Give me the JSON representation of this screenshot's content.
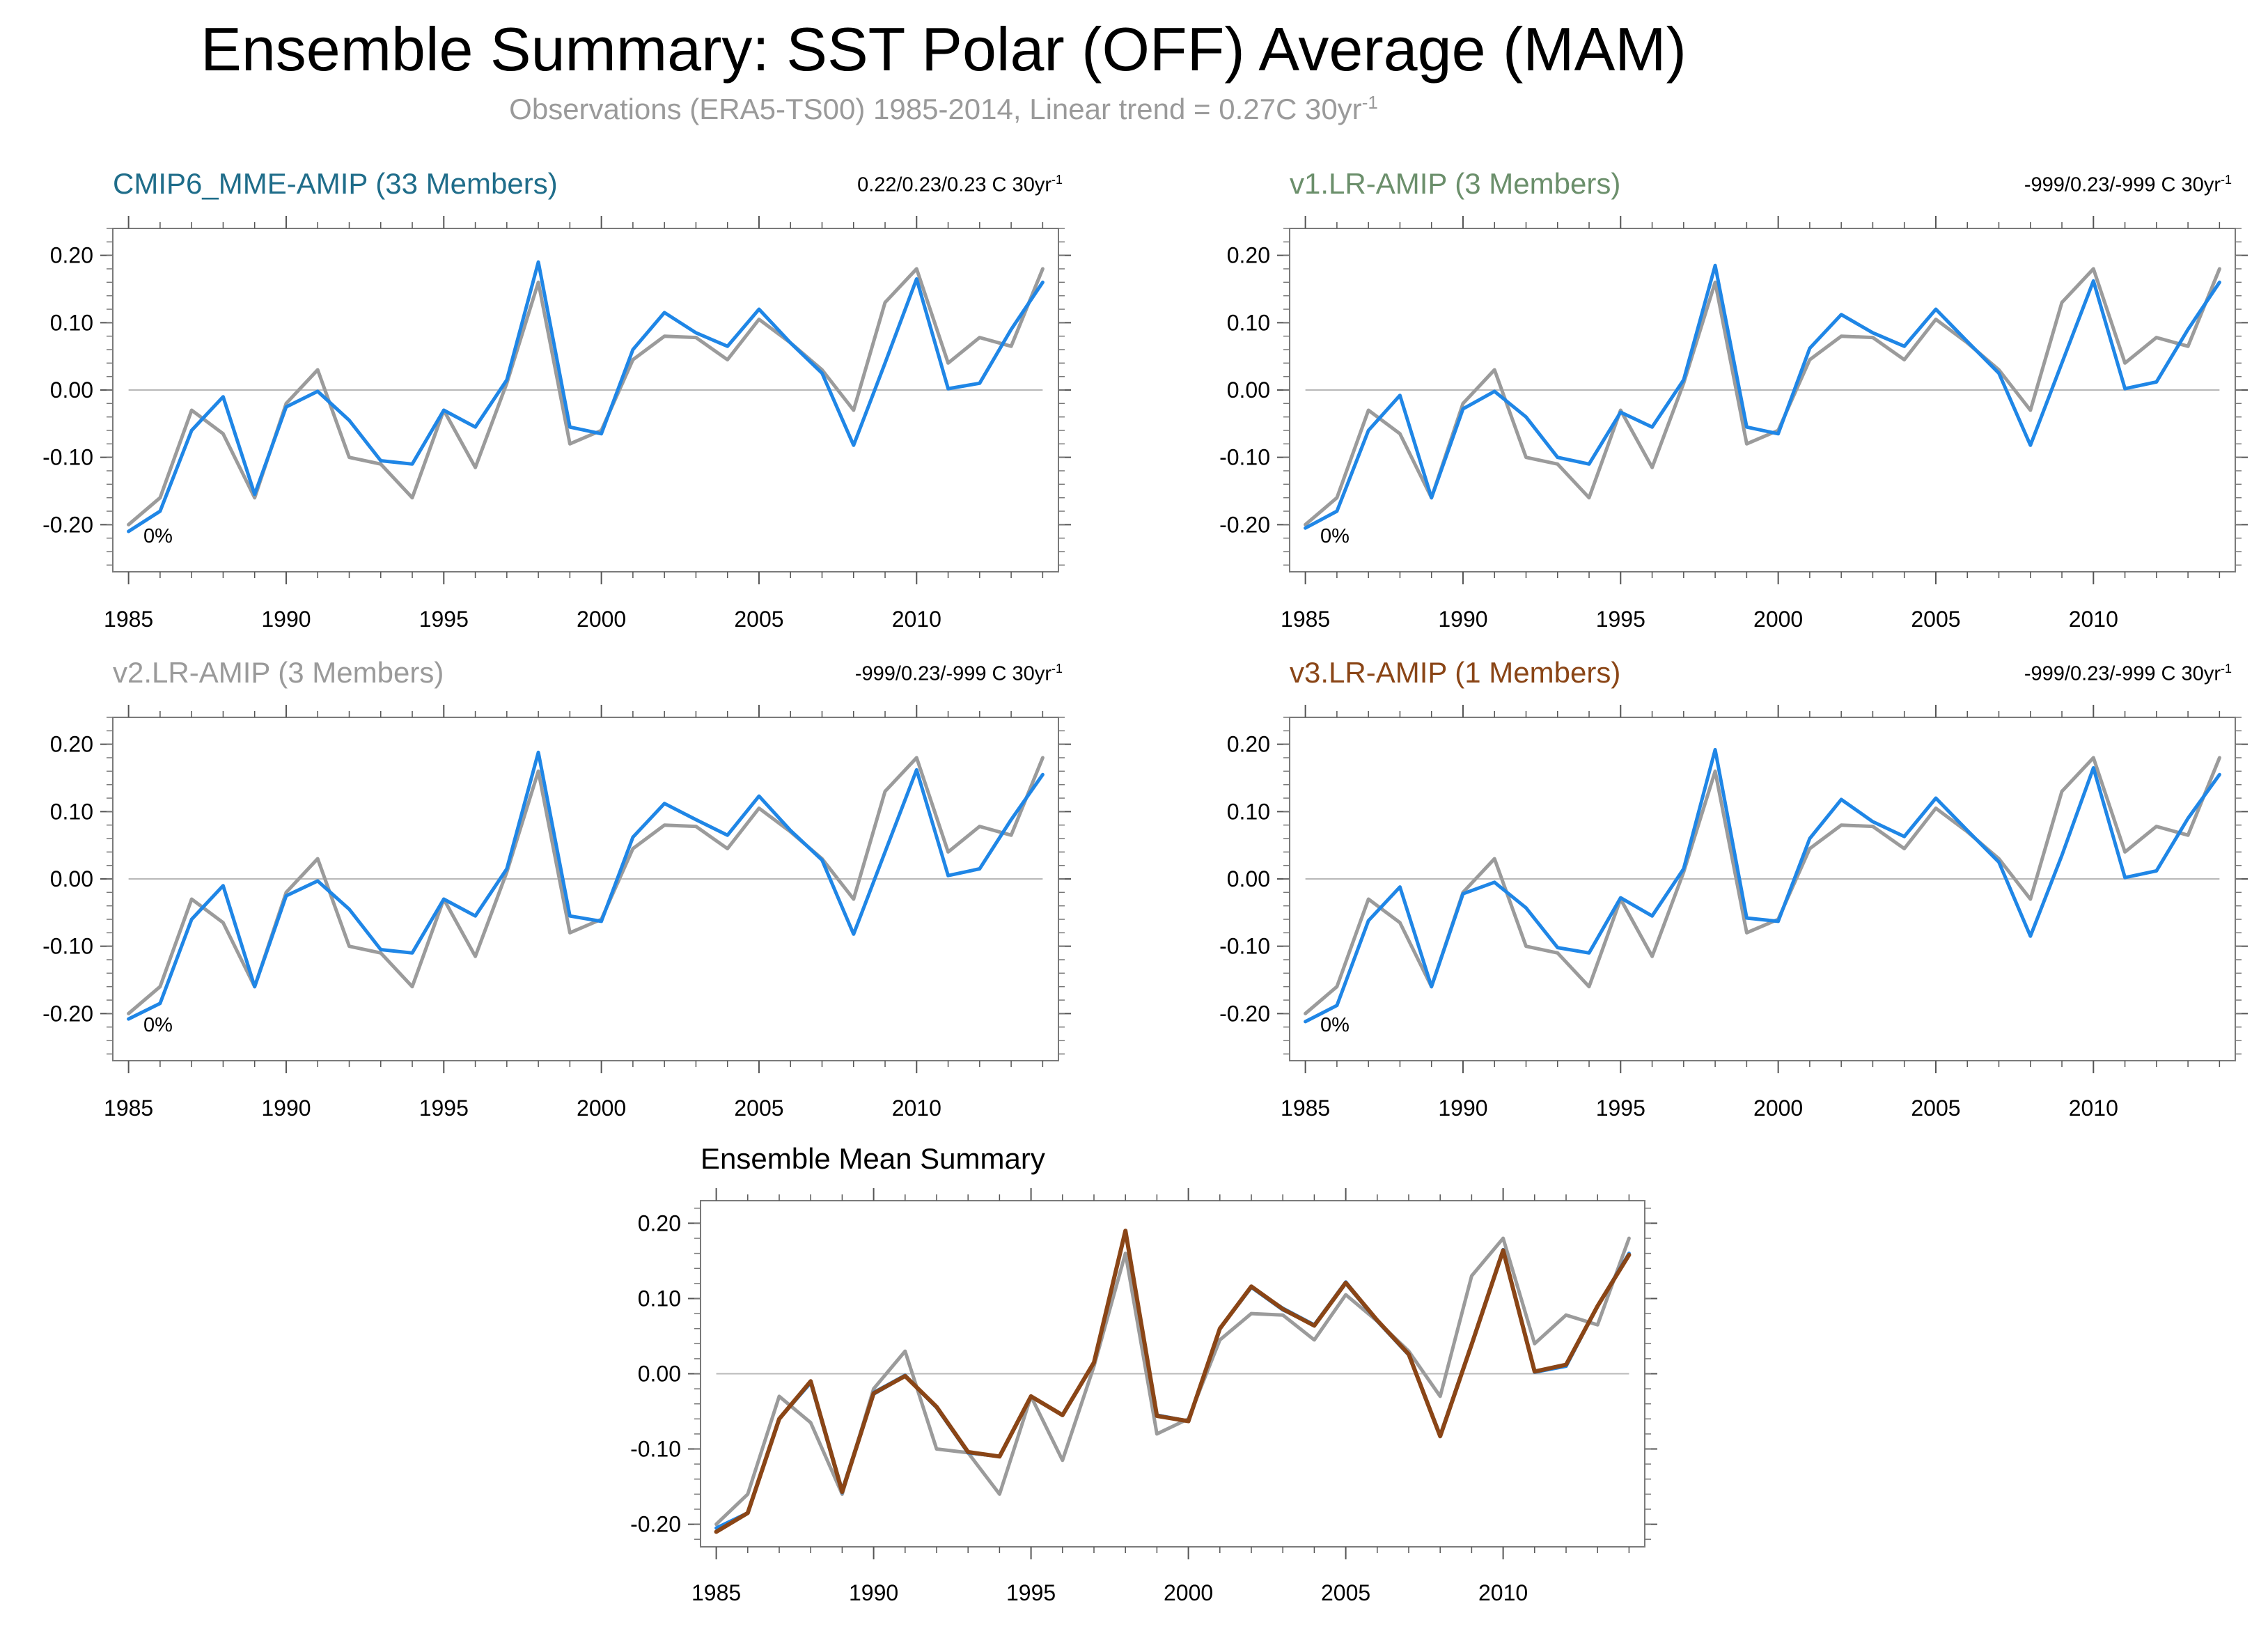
{
  "title": "Ensemble Summary: SST Polar (OFF) Average (MAM)",
  "subtitle": "Observations (ERA5-TS00) 1985-2014, Linear trend = 0.27C 30yr",
  "subtitle_sup": "-1",
  "colors": {
    "observations": "#9b9b9b",
    "model": "#1f86e6",
    "ensemble_mean": "#8a4516",
    "zero_line": "#b8b8b8",
    "cmip6_title": "#1f6d8a",
    "v1_title": "#6b8f6b",
    "v2_title": "#9a9a9a",
    "v3_title": "#8a4516"
  },
  "panels": [
    {
      "title": "CMIP6_MME-AMIP (33 Members)",
      "trend": "0.22/0.23/0.23 C 30yr",
      "trend_sup": "-1",
      "percent": "0%"
    },
    {
      "title": "v1.LR-AMIP (3 Members)",
      "trend": "-999/0.23/-999 C 30yr",
      "trend_sup": "-1",
      "percent": "0%"
    },
    {
      "title": "v2.LR-AMIP (3 Members)",
      "trend": "-999/0.23/-999 C 30yr",
      "trend_sup": "-1",
      "percent": "0%"
    },
    {
      "title": "v3.LR-AMIP (1 Members)",
      "trend": "-999/0.23/-999 C 30yr",
      "trend_sup": "-1",
      "percent": "0%"
    },
    {
      "title": "Ensemble Mean Summary"
    }
  ],
  "chart_data": [
    {
      "type": "line",
      "x": [
        1985,
        1986,
        1987,
        1988,
        1989,
        1990,
        1991,
        1992,
        1993,
        1994,
        1995,
        1996,
        1997,
        1998,
        1999,
        2000,
        2001,
        2002,
        2003,
        2004,
        2005,
        2006,
        2007,
        2008,
        2009,
        2010,
        2011,
        2012,
        2013,
        2014
      ],
      "xticks": [
        "1985",
        "1990",
        "1995",
        "2000",
        "2005",
        "2010"
      ],
      "yticks": [
        "0.20",
        "0.10",
        "0.00",
        "-0.10",
        "-0.20"
      ],
      "ylim": [
        -0.27,
        0.24
      ],
      "xlim": [
        1984.5,
        2014.5
      ],
      "series": [
        {
          "role": "observations",
          "values": [
            -0.2,
            -0.16,
            -0.03,
            -0.065,
            -0.16,
            -0.02,
            0.03,
            -0.1,
            -0.11,
            -0.16,
            -0.03,
            -0.115,
            0.01,
            0.16,
            -0.08,
            -0.06,
            0.045,
            0.08,
            0.078,
            0.045,
            0.105,
            0.07,
            0.03,
            -0.03,
            0.13,
            0.18,
            0.04,
            0.078,
            0.065,
            0.18
          ]
        },
        {
          "role": "model",
          "values": [
            -0.21,
            -0.18,
            -0.06,
            -0.01,
            -0.155,
            -0.025,
            -0.002,
            -0.045,
            -0.105,
            -0.11,
            -0.03,
            -0.055,
            0.015,
            0.19,
            -0.055,
            -0.065,
            0.06,
            0.115,
            0.085,
            0.065,
            0.12,
            0.07,
            0.025,
            -0.082,
            0.04,
            0.165,
            0.002,
            0.01,
            0.09,
            0.16
          ]
        }
      ]
    },
    {
      "type": "line",
      "x": [
        1985,
        1986,
        1987,
        1988,
        1989,
        1990,
        1991,
        1992,
        1993,
        1994,
        1995,
        1996,
        1997,
        1998,
        1999,
        2000,
        2001,
        2002,
        2003,
        2004,
        2005,
        2006,
        2007,
        2008,
        2009,
        2010,
        2011,
        2012,
        2013,
        2014
      ],
      "xticks": [
        "1985",
        "1990",
        "1995",
        "2000",
        "2005",
        "2010"
      ],
      "yticks": [
        "0.20",
        "0.10",
        "0.00",
        "-0.10",
        "-0.20"
      ],
      "ylim": [
        -0.27,
        0.24
      ],
      "xlim": [
        1984.5,
        2014.5
      ],
      "series": [
        {
          "role": "observations",
          "values": [
            -0.2,
            -0.16,
            -0.03,
            -0.065,
            -0.16,
            -0.02,
            0.03,
            -0.1,
            -0.11,
            -0.16,
            -0.03,
            -0.115,
            0.01,
            0.16,
            -0.08,
            -0.06,
            0.045,
            0.08,
            0.078,
            0.045,
            0.105,
            0.07,
            0.03,
            -0.03,
            0.13,
            0.18,
            0.04,
            0.078,
            0.065,
            0.18
          ]
        },
        {
          "role": "model",
          "values": [
            -0.205,
            -0.18,
            -0.06,
            -0.008,
            -0.16,
            -0.028,
            -0.002,
            -0.04,
            -0.1,
            -0.11,
            -0.033,
            -0.055,
            0.015,
            0.185,
            -0.055,
            -0.065,
            0.062,
            0.112,
            0.085,
            0.065,
            0.12,
            0.072,
            0.025,
            -0.082,
            0.04,
            0.162,
            0.002,
            0.012,
            0.09,
            0.16
          ]
        }
      ]
    },
    {
      "type": "line",
      "x": [
        1985,
        1986,
        1987,
        1988,
        1989,
        1990,
        1991,
        1992,
        1993,
        1994,
        1995,
        1996,
        1997,
        1998,
        1999,
        2000,
        2001,
        2002,
        2003,
        2004,
        2005,
        2006,
        2007,
        2008,
        2009,
        2010,
        2011,
        2012,
        2013,
        2014
      ],
      "xticks": [
        "1985",
        "1990",
        "1995",
        "2000",
        "2005",
        "2010"
      ],
      "yticks": [
        "0.20",
        "0.10",
        "0.00",
        "-0.10",
        "-0.20"
      ],
      "ylim": [
        -0.27,
        0.24
      ],
      "xlim": [
        1984.5,
        2014.5
      ],
      "series": [
        {
          "role": "observations",
          "values": [
            -0.2,
            -0.16,
            -0.03,
            -0.065,
            -0.16,
            -0.02,
            0.03,
            -0.1,
            -0.11,
            -0.16,
            -0.03,
            -0.115,
            0.01,
            0.16,
            -0.08,
            -0.06,
            0.045,
            0.08,
            0.078,
            0.045,
            0.105,
            0.07,
            0.03,
            -0.03,
            0.13,
            0.18,
            0.04,
            0.078,
            0.065,
            0.18
          ]
        },
        {
          "role": "model",
          "values": [
            -0.208,
            -0.185,
            -0.06,
            -0.01,
            -0.16,
            -0.025,
            -0.003,
            -0.045,
            -0.105,
            -0.11,
            -0.03,
            -0.055,
            0.015,
            0.188,
            -0.055,
            -0.063,
            0.062,
            0.112,
            0.088,
            0.065,
            0.123,
            0.072,
            0.028,
            -0.082,
            0.04,
            0.162,
            0.005,
            0.015,
            0.088,
            0.155
          ]
        }
      ]
    },
    {
      "type": "line",
      "x": [
        1985,
        1986,
        1987,
        1988,
        1989,
        1990,
        1991,
        1992,
        1993,
        1994,
        1995,
        1996,
        1997,
        1998,
        1999,
        2000,
        2001,
        2002,
        2003,
        2004,
        2005,
        2006,
        2007,
        2008,
        2009,
        2010,
        2011,
        2012,
        2013,
        2014
      ],
      "xticks": [
        "1985",
        "1990",
        "1995",
        "2000",
        "2005",
        "2010"
      ],
      "yticks": [
        "0.20",
        "0.10",
        "0.00",
        "-0.10",
        "-0.20"
      ],
      "ylim": [
        -0.27,
        0.24
      ],
      "xlim": [
        1984.5,
        2014.5
      ],
      "series": [
        {
          "role": "observations",
          "values": [
            -0.2,
            -0.16,
            -0.03,
            -0.065,
            -0.16,
            -0.02,
            0.03,
            -0.1,
            -0.11,
            -0.16,
            -0.03,
            -0.115,
            0.01,
            0.16,
            -0.08,
            -0.06,
            0.045,
            0.08,
            0.078,
            0.045,
            0.105,
            0.07,
            0.03,
            -0.03,
            0.13,
            0.18,
            0.04,
            0.078,
            0.065,
            0.18
          ]
        },
        {
          "role": "model",
          "values": [
            -0.212,
            -0.188,
            -0.062,
            -0.012,
            -0.16,
            -0.022,
            -0.005,
            -0.043,
            -0.102,
            -0.11,
            -0.028,
            -0.055,
            0.015,
            0.192,
            -0.058,
            -0.063,
            0.06,
            0.118,
            0.085,
            0.063,
            0.12,
            0.072,
            0.025,
            -0.085,
            0.035,
            0.165,
            0.002,
            0.012,
            0.09,
            0.155
          ]
        }
      ]
    },
    {
      "type": "line",
      "x": [
        1985,
        1986,
        1987,
        1988,
        1989,
        1990,
        1991,
        1992,
        1993,
        1994,
        1995,
        1996,
        1997,
        1998,
        1999,
        2000,
        2001,
        2002,
        2003,
        2004,
        2005,
        2006,
        2007,
        2008,
        2009,
        2010,
        2011,
        2012,
        2013,
        2014
      ],
      "xticks": [
        "1985",
        "1990",
        "1995",
        "2000",
        "2005",
        "2010"
      ],
      "yticks": [
        "0.20",
        "0.10",
        "0.00",
        "-0.10",
        "-0.20"
      ],
      "ylim": [
        -0.23,
        0.23
      ],
      "xlim": [
        1984.5,
        2014.5
      ],
      "series": [
        {
          "role": "observations",
          "values": [
            -0.2,
            -0.16,
            -0.03,
            -0.065,
            -0.16,
            -0.02,
            0.03,
            -0.1,
            -0.105,
            -0.16,
            -0.03,
            -0.115,
            0.01,
            0.16,
            -0.08,
            -0.06,
            0.045,
            0.08,
            0.078,
            0.045,
            0.105,
            0.07,
            0.03,
            -0.03,
            0.13,
            0.18,
            0.04,
            0.078,
            0.065,
            0.18
          ]
        },
        {
          "role": "model",
          "values": [
            -0.205,
            -0.185,
            -0.06,
            -0.01,
            -0.155,
            -0.025,
            -0.002,
            -0.045,
            -0.105,
            -0.11,
            -0.03,
            -0.055,
            0.015,
            0.19,
            -0.055,
            -0.063,
            0.06,
            0.115,
            0.085,
            0.065,
            0.12,
            0.07,
            0.025,
            -0.082,
            0.04,
            0.165,
            0.002,
            0.01,
            0.09,
            0.16
          ]
        },
        {
          "role": "model",
          "values": [
            -0.21,
            -0.185,
            -0.06,
            -0.012,
            -0.158,
            -0.027,
            -0.003,
            -0.045,
            -0.105,
            -0.11,
            -0.03,
            -0.055,
            0.015,
            0.19,
            -0.055,
            -0.063,
            0.06,
            0.115,
            0.087,
            0.065,
            0.122,
            0.071,
            0.026,
            -0.082,
            0.04,
            0.163,
            0.003,
            0.012,
            0.09,
            0.158
          ]
        },
        {
          "role": "ensemble_mean",
          "values": [
            -0.21,
            -0.185,
            -0.06,
            -0.01,
            -0.157,
            -0.026,
            -0.003,
            -0.044,
            -0.104,
            -0.11,
            -0.03,
            -0.055,
            0.015,
            0.19,
            -0.056,
            -0.063,
            0.06,
            0.116,
            0.086,
            0.064,
            0.121,
            0.071,
            0.026,
            -0.083,
            0.039,
            0.164,
            0.003,
            0.012,
            0.09,
            0.158
          ]
        }
      ]
    }
  ]
}
